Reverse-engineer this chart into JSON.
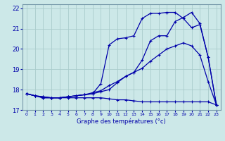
{
  "xlabel": "Graphe des températures (°c)",
  "background_color": "#cce8e8",
  "grid_color": "#aacccc",
  "line_color": "#0000aa",
  "xlim": [
    -0.5,
    23.5
  ],
  "ylim": [
    17.0,
    22.2
  ],
  "yticks": [
    17,
    18,
    19,
    20,
    21,
    22
  ],
  "xticks": [
    0,
    1,
    2,
    3,
    4,
    5,
    6,
    7,
    8,
    9,
    10,
    11,
    12,
    13,
    14,
    15,
    16,
    17,
    18,
    19,
    20,
    21,
    22,
    23
  ],
  "line1_x": [
    0,
    1,
    2,
    3,
    4,
    5,
    6,
    7,
    8,
    9,
    10,
    11,
    12,
    13,
    14,
    15,
    16,
    17,
    18,
    19,
    20,
    21,
    22,
    23
  ],
  "line1_y": [
    17.8,
    17.7,
    17.6,
    17.6,
    17.6,
    17.6,
    17.6,
    17.6,
    17.6,
    17.6,
    17.55,
    17.5,
    17.5,
    17.45,
    17.4,
    17.4,
    17.4,
    17.4,
    17.4,
    17.4,
    17.4,
    17.4,
    17.4,
    17.25
  ],
  "line2_x": [
    0,
    1,
    2,
    3,
    4,
    5,
    6,
    7,
    8,
    9,
    10,
    11,
    12,
    13,
    14,
    15,
    16,
    17,
    18,
    19,
    20,
    21,
    22,
    23
  ],
  "line2_y": [
    17.8,
    17.7,
    17.6,
    17.6,
    17.6,
    17.65,
    17.7,
    17.75,
    17.85,
    17.95,
    18.2,
    18.4,
    18.65,
    18.85,
    19.05,
    19.4,
    19.7,
    20.0,
    20.15,
    20.3,
    20.15,
    19.7,
    18.4,
    17.25
  ],
  "line3_x": [
    0,
    1,
    2,
    3,
    4,
    5,
    6,
    7,
    8,
    9,
    10,
    11,
    12,
    13,
    14,
    15,
    16,
    17,
    18,
    19,
    20,
    21,
    22,
    23
  ],
  "line3_y": [
    17.8,
    17.7,
    17.65,
    17.6,
    17.6,
    17.65,
    17.7,
    17.75,
    17.8,
    17.9,
    18.0,
    18.35,
    18.65,
    18.85,
    19.45,
    20.4,
    20.65,
    20.65,
    21.35,
    21.55,
    21.8,
    21.25,
    19.6,
    17.25
  ],
  "line4_x": [
    0,
    1,
    2,
    3,
    4,
    5,
    6,
    7,
    8,
    9,
    10,
    11,
    12,
    13,
    14,
    15,
    16,
    17,
    18,
    19,
    20,
    21,
    22,
    23
  ],
  "line4_y": [
    17.8,
    17.7,
    17.65,
    17.6,
    17.6,
    17.65,
    17.7,
    17.75,
    17.8,
    18.3,
    20.2,
    20.5,
    20.55,
    20.65,
    21.5,
    21.75,
    21.75,
    21.8,
    21.8,
    21.5,
    21.05,
    21.2,
    19.6,
    17.25
  ]
}
